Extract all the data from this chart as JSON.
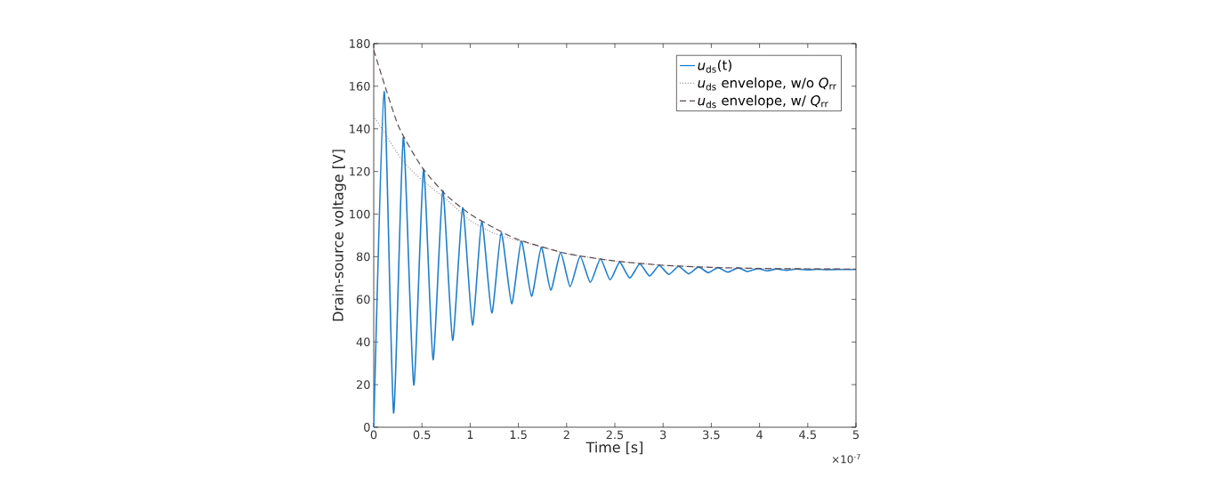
{
  "chart_data": {
    "type": "line",
    "xlabel": "Time [s]",
    "ylabel": "Drain-source voltage [V]",
    "annotations": [
      "×10$^{-7}$"
    ],
    "xlim": [
      0,
      5
    ],
    "ylim": [
      0,
      180
    ],
    "xticks": [
      0,
      0.5,
      1,
      1.5,
      2,
      2.5,
      3,
      3.5,
      4,
      4.5,
      5
    ],
    "yticks": [
      0,
      20,
      40,
      60,
      80,
      100,
      120,
      140,
      160,
      180
    ],
    "grid": false,
    "legend": "top right",
    "marker": "none",
    "series": [
      {
        "name": "*u*$_{ds}$(t)",
        "color": "#1f7fcb",
        "line_style": "solid",
        "x": [
          0,
          0.108,
          0.206,
          0.307,
          0.415,
          0.517,
          0.615,
          0.716,
          0.818,
          0.922,
          1.024,
          1.12,
          1.224,
          1.322,
          1.43,
          1.53,
          1.636,
          1.737,
          1.835,
          1.937,
          2.036,
          2.14,
          2.245,
          2.35,
          2.45,
          2.55,
          2.654,
          2.758,
          2.86,
          2.96,
          3.06,
          3.16,
          3.266,
          3.367,
          3.47,
          3.567,
          3.67,
          3.78,
          3.875,
          3.98,
          4.08,
          4.18,
          4.28,
          4.38,
          4.49,
          4.59,
          4.69,
          4.8,
          4.9,
          5
        ],
        "values": [
          0,
          157.5,
          6.7,
          136,
          19.8,
          121,
          31.7,
          111,
          40.8,
          103,
          48,
          96.5,
          53.6,
          91.2,
          58,
          87.4,
          61.5,
          84.4,
          64.3,
          82,
          66,
          80.2,
          68,
          79,
          69.2,
          77.4,
          70,
          76.6,
          71,
          75.9,
          71.7,
          75.5,
          72,
          75.2,
          72.5,
          74.9,
          72.8,
          74.8,
          73.1,
          74.5,
          73.4,
          74.3,
          73.6,
          74.2,
          73.8,
          74.1,
          73.9,
          74,
          74,
          74
        ]
      },
      {
        "name": "*u*$_{ds}$ envelope, w/o  *Q*$_{rr}$",
        "color": "#9a8a90",
        "line_style": "dotted",
        "x": [
          0,
          0.1,
          0.3,
          0.5,
          0.75,
          1,
          1.25,
          1.5,
          2,
          2.5,
          3,
          3.5,
          4,
          5
        ],
        "values": [
          146,
          139,
          125,
          116,
          107,
          97,
          91,
          87.5,
          81.5,
          78,
          76,
          75,
          74.5,
          74.2
        ]
      },
      {
        "name": "*u*$_{ds}$ envelope, w/  *Q*$_{rr}$",
        "color": "#5c4a50",
        "line_style": "dashed",
        "x": [
          0,
          0.25,
          0.5,
          0.75,
          1,
          1.25,
          1.5,
          2,
          2.5,
          3,
          3.5,
          4,
          5
        ],
        "values": [
          177,
          142,
          122,
          109,
          100,
          93.5,
          88,
          81.5,
          78,
          76,
          75,
          74.5,
          74.2
        ]
      }
    ]
  }
}
